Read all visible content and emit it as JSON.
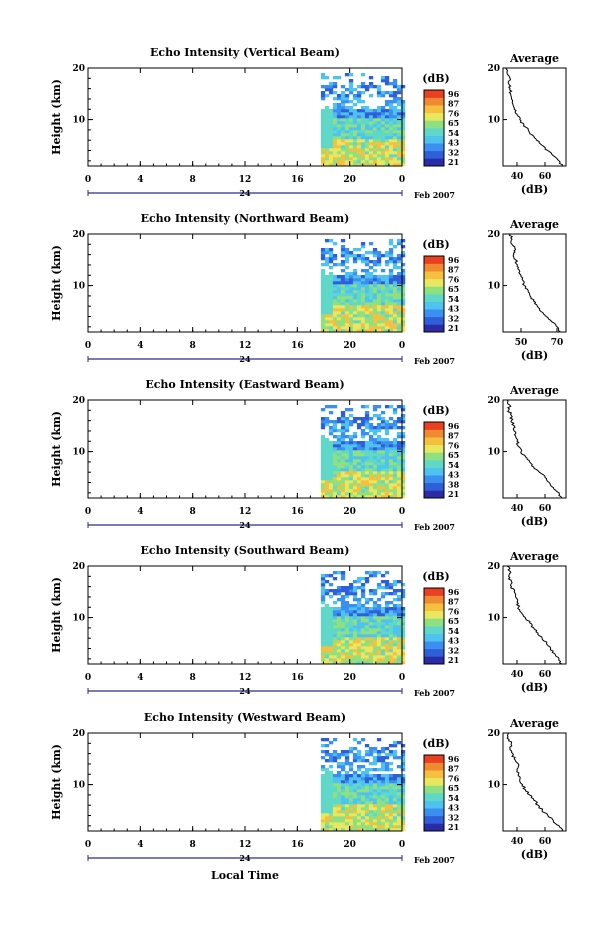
{
  "chart_data": {
    "type": "heatmap",
    "xlabel": "Local Time",
    "date_label": "Feb 2007",
    "day_label": "24",
    "x_ticks": [
      "0",
      "4",
      "8",
      "12",
      "16",
      "20",
      "0"
    ],
    "xlim": [
      0,
      24
    ],
    "y_ticks": [
      "10",
      "20"
    ],
    "ylim": [
      1,
      20
    ],
    "ylabel": "Height (km)",
    "colorbar_unit": "(dB)",
    "colors": [
      "#2b2ba8",
      "#2f5fd8",
      "#3b8ff0",
      "#4fc3f0",
      "#5fd8c8",
      "#8ee080",
      "#e8e860",
      "#f5c040",
      "#f08a30",
      "#e84020"
    ],
    "profile_title": "Average",
    "profile_unit": "(dB)",
    "panels": [
      {
        "title": "Echo Intensity (Vertical Beam)",
        "colorbar_ticks": [
          "96",
          "87",
          "76",
          "65",
          "54",
          "43",
          "32",
          "21"
        ],
        "profile_x_ticks": [
          "40",
          "60"
        ],
        "profile_xlim": [
          30,
          75
        ],
        "data_start_hour": 17.8,
        "profile": [
          [
            1,
            72
          ],
          [
            2,
            70
          ],
          [
            3,
            66
          ],
          [
            4,
            62
          ],
          [
            5,
            58
          ],
          [
            6,
            54
          ],
          [
            7,
            51
          ],
          [
            8,
            48
          ],
          [
            9,
            45
          ],
          [
            10,
            42
          ],
          [
            11,
            40
          ],
          [
            12,
            38
          ],
          [
            13,
            37
          ],
          [
            14,
            36
          ],
          [
            15,
            35.5
          ],
          [
            16,
            35
          ],
          [
            17,
            34
          ],
          [
            18,
            35
          ],
          [
            19,
            33
          ],
          [
            20,
            32
          ]
        ]
      },
      {
        "title": "Echo Intensity (Northward Beam)",
        "colorbar_ticks": [
          "96",
          "87",
          "76",
          "65",
          "54",
          "43",
          "32",
          "21"
        ],
        "profile_x_ticks": [
          "50",
          "70"
        ],
        "profile_xlim": [
          40,
          75
        ],
        "data_start_hour": 17.8,
        "profile": [
          [
            1,
            72
          ],
          [
            2,
            70
          ],
          [
            3,
            67
          ],
          [
            4,
            64
          ],
          [
            5,
            61
          ],
          [
            6,
            59
          ],
          [
            7,
            57
          ],
          [
            8,
            55
          ],
          [
            9,
            54
          ],
          [
            10,
            52
          ],
          [
            11,
            51
          ],
          [
            12,
            50
          ],
          [
            13,
            49
          ],
          [
            14,
            48
          ],
          [
            15,
            47
          ],
          [
            16,
            46
          ],
          [
            17,
            47
          ],
          [
            18,
            45
          ],
          [
            19,
            45
          ],
          [
            20,
            44
          ]
        ]
      },
      {
        "title": "Echo Intensity (Eastward Beam)",
        "colorbar_ticks": [
          "96",
          "87",
          "76",
          "65",
          "54",
          "43",
          "38",
          "21"
        ],
        "profile_x_ticks": [
          "40",
          "60"
        ],
        "profile_xlim": [
          30,
          75
        ],
        "data_start_hour": 17.8,
        "profile": [
          [
            1,
            72
          ],
          [
            2,
            70
          ],
          [
            3,
            66
          ],
          [
            4,
            63
          ],
          [
            5,
            60
          ],
          [
            6,
            56
          ],
          [
            7,
            52
          ],
          [
            8,
            49
          ],
          [
            9,
            46
          ],
          [
            10,
            43
          ],
          [
            11,
            41
          ],
          [
            12,
            40
          ],
          [
            13,
            39
          ],
          [
            14,
            38
          ],
          [
            15,
            38
          ],
          [
            16,
            36
          ],
          [
            17,
            36
          ],
          [
            18,
            34
          ],
          [
            19,
            35
          ],
          [
            20,
            33
          ]
        ]
      },
      {
        "title": "Echo Intensity (Southward Beam)",
        "colorbar_ticks": [
          "96",
          "87",
          "76",
          "65",
          "54",
          "43",
          "32",
          "21"
        ],
        "profile_x_ticks": [
          "40",
          "60"
        ],
        "profile_xlim": [
          30,
          75
        ],
        "data_start_hour": 17.8,
        "profile": [
          [
            1,
            72
          ],
          [
            2,
            70
          ],
          [
            3,
            67
          ],
          [
            4,
            64
          ],
          [
            5,
            61
          ],
          [
            6,
            58
          ],
          [
            7,
            55
          ],
          [
            8,
            52
          ],
          [
            9,
            49
          ],
          [
            10,
            46
          ],
          [
            11,
            43
          ],
          [
            12,
            41
          ],
          [
            13,
            40
          ],
          [
            14,
            39
          ],
          [
            15,
            38
          ],
          [
            16,
            36
          ],
          [
            17,
            36
          ],
          [
            18,
            34
          ],
          [
            19,
            35
          ],
          [
            20,
            33
          ]
        ]
      },
      {
        "title": "Echo Intensity (Westward Beam)",
        "colorbar_ticks": [
          "96",
          "87",
          "76",
          "65",
          "54",
          "43",
          "32",
          "21"
        ],
        "profile_x_ticks": [
          "40",
          "60"
        ],
        "profile_xlim": [
          30,
          75
        ],
        "data_start_hour": 17.8,
        "profile": [
          [
            1,
            72
          ],
          [
            2,
            70
          ],
          [
            3,
            66
          ],
          [
            4,
            62
          ],
          [
            5,
            58
          ],
          [
            6,
            55
          ],
          [
            7,
            52
          ],
          [
            8,
            49
          ],
          [
            9,
            46
          ],
          [
            10,
            44
          ],
          [
            11,
            42
          ],
          [
            12,
            41
          ],
          [
            13,
            40
          ],
          [
            14,
            41
          ],
          [
            15,
            38
          ],
          [
            16,
            37
          ],
          [
            17,
            35
          ],
          [
            18,
            36
          ],
          [
            19,
            33
          ],
          [
            20,
            34
          ]
        ]
      }
    ]
  }
}
